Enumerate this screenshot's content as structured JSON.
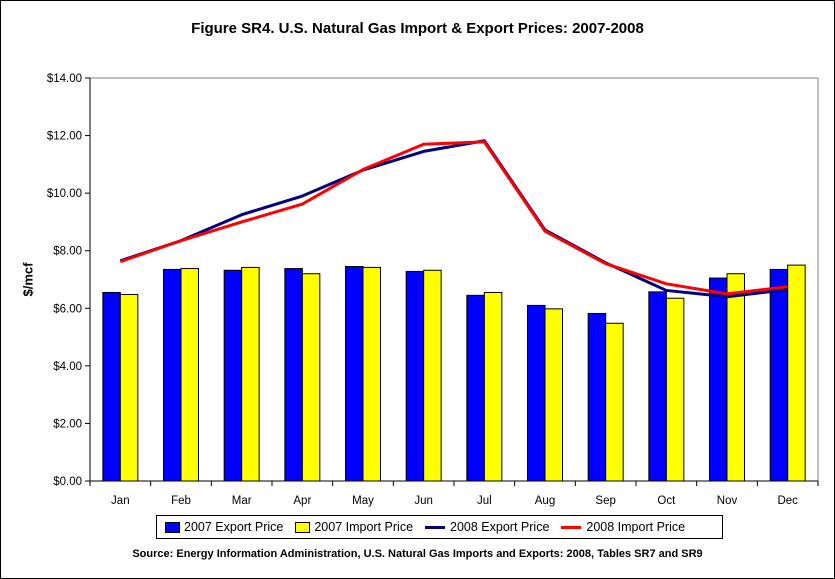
{
  "chart_data": {
    "type": "bar",
    "title": "Figure SR4. U.S. Natural Gas Import & Export Prices: 2007-2008",
    "xlabel": "",
    "ylabel": "$/mcf",
    "ylim": [
      0,
      14
    ],
    "yticks": [
      "$0.00",
      "$2.00",
      "$4.00",
      "$6.00",
      "$8.00",
      "$10.00",
      "$12.00",
      "$14.00"
    ],
    "categories": [
      "Jan",
      "Feb",
      "Mar",
      "Apr",
      "May",
      "Jun",
      "Jul",
      "Aug",
      "Sep",
      "Oct",
      "Nov",
      "Dec"
    ],
    "series": [
      {
        "name": "2007 Export Price",
        "kind": "bar",
        "color": "#0000ff",
        "values": [
          6.55,
          7.35,
          7.32,
          7.38,
          7.45,
          7.28,
          6.45,
          6.1,
          5.82,
          6.57,
          7.05,
          7.35
        ]
      },
      {
        "name": "2007 Import Price",
        "kind": "bar",
        "color": "#ffff00",
        "values": [
          6.48,
          7.38,
          7.42,
          7.2,
          7.42,
          7.32,
          6.55,
          5.98,
          5.48,
          6.35,
          7.2,
          7.5
        ]
      },
      {
        "name": "2008 Export Price",
        "kind": "line",
        "color": "#000080",
        "values": [
          7.65,
          8.35,
          9.25,
          9.9,
          10.8,
          11.45,
          11.82,
          8.72,
          7.58,
          6.62,
          6.4,
          6.65
        ]
      },
      {
        "name": "2008 Import Price",
        "kind": "line",
        "color": "#ff0000",
        "values": [
          7.62,
          8.35,
          9.0,
          9.62,
          10.82,
          11.7,
          11.78,
          8.68,
          7.55,
          6.85,
          6.5,
          6.75
        ]
      }
    ],
    "grid": false,
    "legend_position": "bottom"
  },
  "source": "Source: Energy Information Administration, U.S. Natural Gas Imports and Exports: 2008, Tables SR7 and SR9"
}
